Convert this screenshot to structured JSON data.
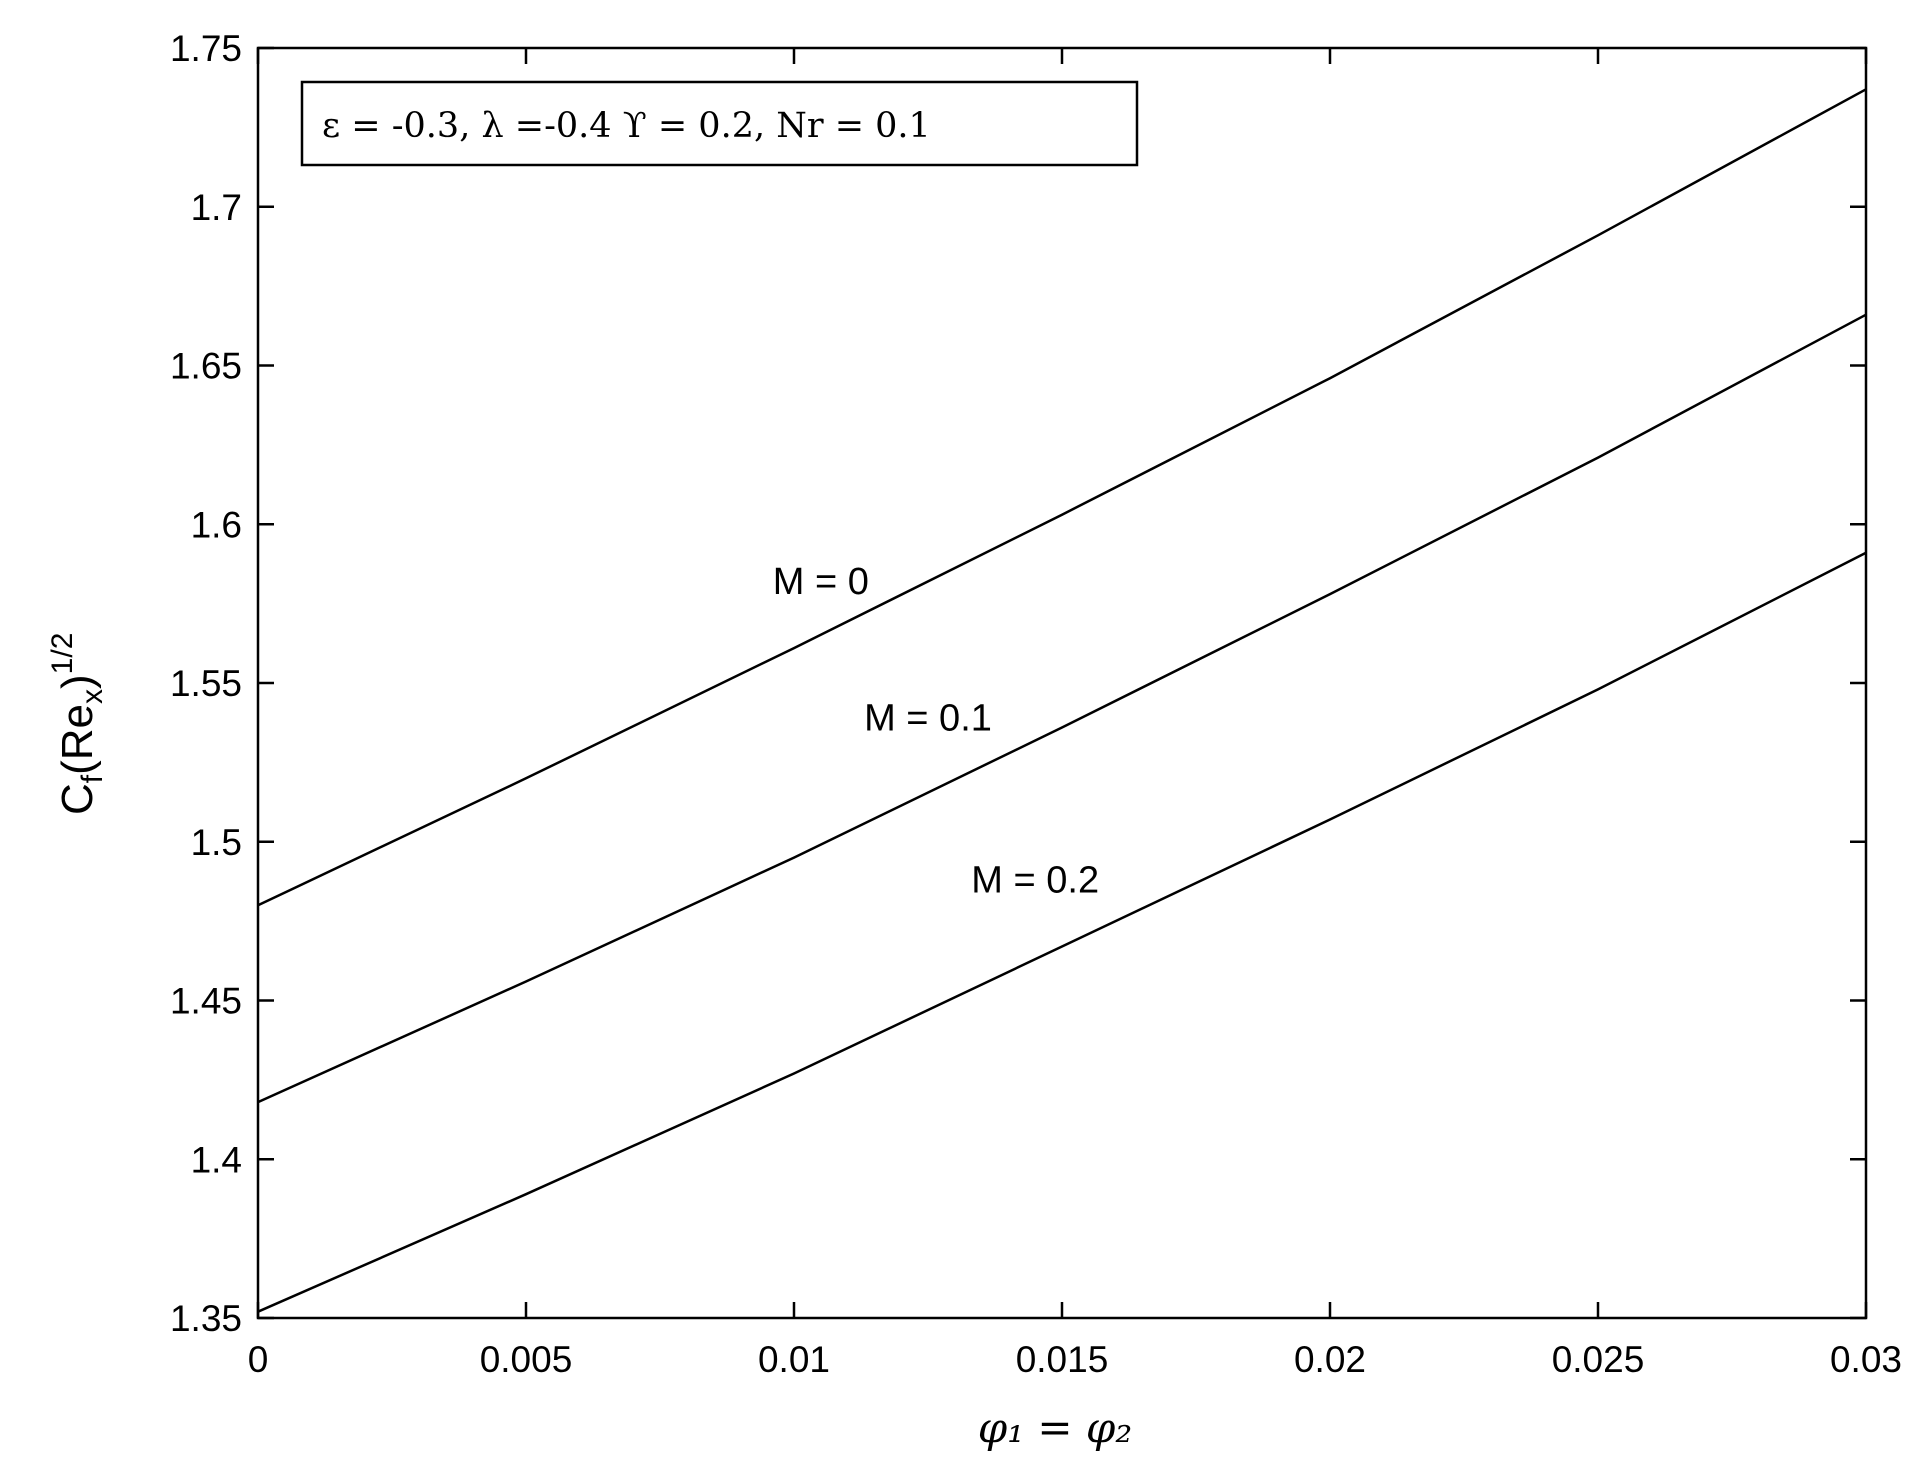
{
  "chart_data": {
    "type": "line",
    "xlabel": "φ₁ = φ₂",
    "ylabel": {
      "main": "C",
      "sub1": "f",
      "mid": "(Re",
      "sub2": "x",
      "close": ")",
      "sup": "1/2"
    },
    "xlim": [
      0,
      0.03
    ],
    "ylim": [
      1.35,
      1.75
    ],
    "x_ticks": [
      0,
      0.005,
      0.01,
      0.015,
      0.02,
      0.025,
      0.03
    ],
    "x_tick_labels": [
      "0",
      "0.005",
      "0.01",
      "0.015",
      "0.02",
      "0.025",
      "0.03"
    ],
    "y_ticks": [
      1.35,
      1.4,
      1.45,
      1.5,
      1.55,
      1.6,
      1.65,
      1.7,
      1.75
    ],
    "y_tick_labels": [
      "1.35",
      "1.4",
      "1.45",
      "1.5",
      "1.55",
      "1.6",
      "1.65",
      "1.7",
      "1.75"
    ],
    "parameter_box": "ε = -0.3, λ =-0.4 ϒ = 0.2, Nr = 0.1",
    "legend_position": "top-left",
    "grid": false,
    "line_color": "#000000",
    "x": [
      0,
      0.005,
      0.01,
      0.015,
      0.02,
      0.025,
      0.03
    ],
    "series": [
      {
        "name": "M = 0",
        "label_at": [
          0.0105,
          1.578
        ],
        "values": [
          1.48,
          1.52,
          1.561,
          1.603,
          1.646,
          1.691,
          1.737
        ]
      },
      {
        "name": "M = 0.1",
        "label_at": [
          0.0125,
          1.535
        ],
        "values": [
          1.418,
          1.456,
          1.495,
          1.536,
          1.578,
          1.621,
          1.666
        ]
      },
      {
        "name": "M = 0.2",
        "label_at": [
          0.0145,
          1.484
        ],
        "values": [
          1.352,
          1.389,
          1.427,
          1.467,
          1.507,
          1.548,
          1.591
        ]
      }
    ]
  }
}
